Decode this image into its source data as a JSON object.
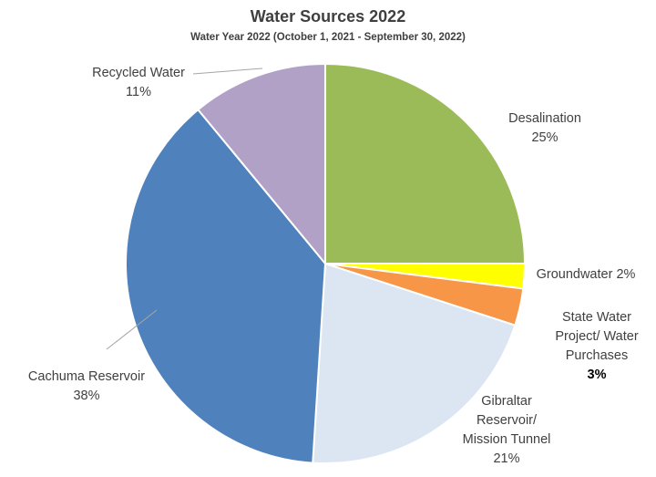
{
  "chart_data": {
    "type": "pie",
    "title": "Water Sources 2022",
    "subtitle": "Water Year 2022 (October 1, 2021 - September 30, 2022)",
    "slices": [
      {
        "key": "desalination",
        "lines": [
          "Desalination"
        ],
        "pct_text": "25%",
        "value": 25,
        "color": "#9BBB59"
      },
      {
        "key": "groundwater",
        "lines": [
          "Groundwater 2%"
        ],
        "pct_text": "",
        "value": 2,
        "color": "#FFFF00"
      },
      {
        "key": "state-water",
        "lines": [
          "State Water",
          "Project/ Water",
          "Purchases"
        ],
        "pct_text": "3%",
        "value": 3,
        "color": "#F79646"
      },
      {
        "key": "gibraltar",
        "lines": [
          "Gibraltar",
          "Reservoir/",
          "Mission Tunnel"
        ],
        "pct_text": "21%",
        "value": 21,
        "color": "#DCE6F2"
      },
      {
        "key": "cachuma",
        "lines": [
          "Cachuma Reservoir"
        ],
        "pct_text": "38%",
        "value": 38,
        "color": "#4F81BD"
      },
      {
        "key": "recycled",
        "lines": [
          "Recycled Water"
        ],
        "pct_text": "11%",
        "value": 11,
        "color": "#B2A1C7"
      }
    ]
  }
}
